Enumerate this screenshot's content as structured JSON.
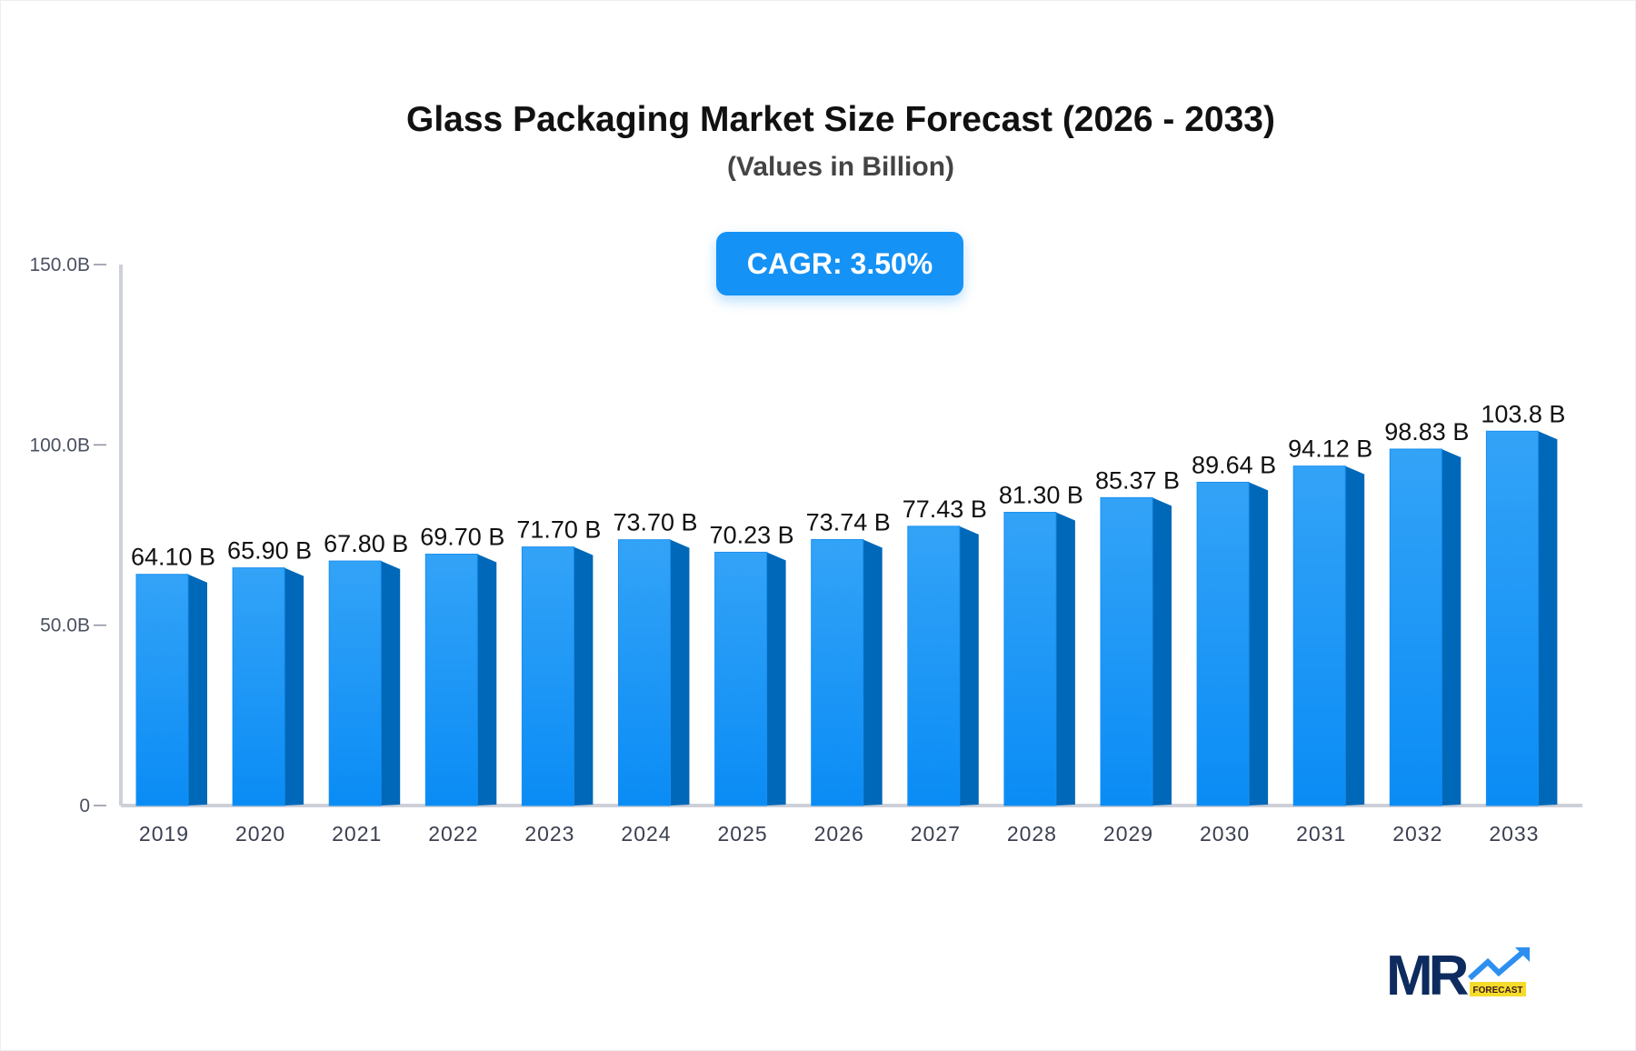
{
  "chart_data": {
    "type": "bar",
    "title": "Glass Packaging Market Size Forecast (2026 - 2033)",
    "subtitle": "(Values in Billion)",
    "categories": [
      "2019",
      "2020",
      "2021",
      "2022",
      "2023",
      "2024",
      "2025",
      "2026",
      "2027",
      "2028",
      "2029",
      "2030",
      "2031",
      "2032",
      "2033"
    ],
    "values": [
      64.1,
      65.9,
      67.8,
      69.7,
      71.7,
      73.7,
      70.23,
      73.74,
      77.43,
      81.3,
      85.37,
      89.64,
      94.12,
      98.83,
      103.8
    ],
    "data_labels": [
      "64.10 B",
      "65.90 B",
      "67.80 B",
      "69.70 B",
      "71.70 B",
      "73.70 B",
      "70.23 B",
      "73.74 B",
      "77.43 B",
      "81.30 B",
      "85.37 B",
      "89.64 B",
      "94.12 B",
      "98.83 B",
      "103.8 B"
    ],
    "yticks": [
      0,
      50,
      100,
      150
    ],
    "ytick_labels": [
      "0",
      "50.0B",
      "100.0B",
      "150.0B"
    ],
    "ylim": [
      0,
      150
    ],
    "xlabel": "",
    "ylabel": "",
    "grid": false,
    "colors": {
      "bar_top": "#33a3f7",
      "bar_bottom": "#0a8cf5",
      "bar_side": "#0068b8",
      "axis": "#cdd0d8"
    }
  },
  "badge": {
    "cagr": "CAGR: 3.50%"
  },
  "logo": {
    "text": "MR",
    "tag": "FORECAST"
  }
}
